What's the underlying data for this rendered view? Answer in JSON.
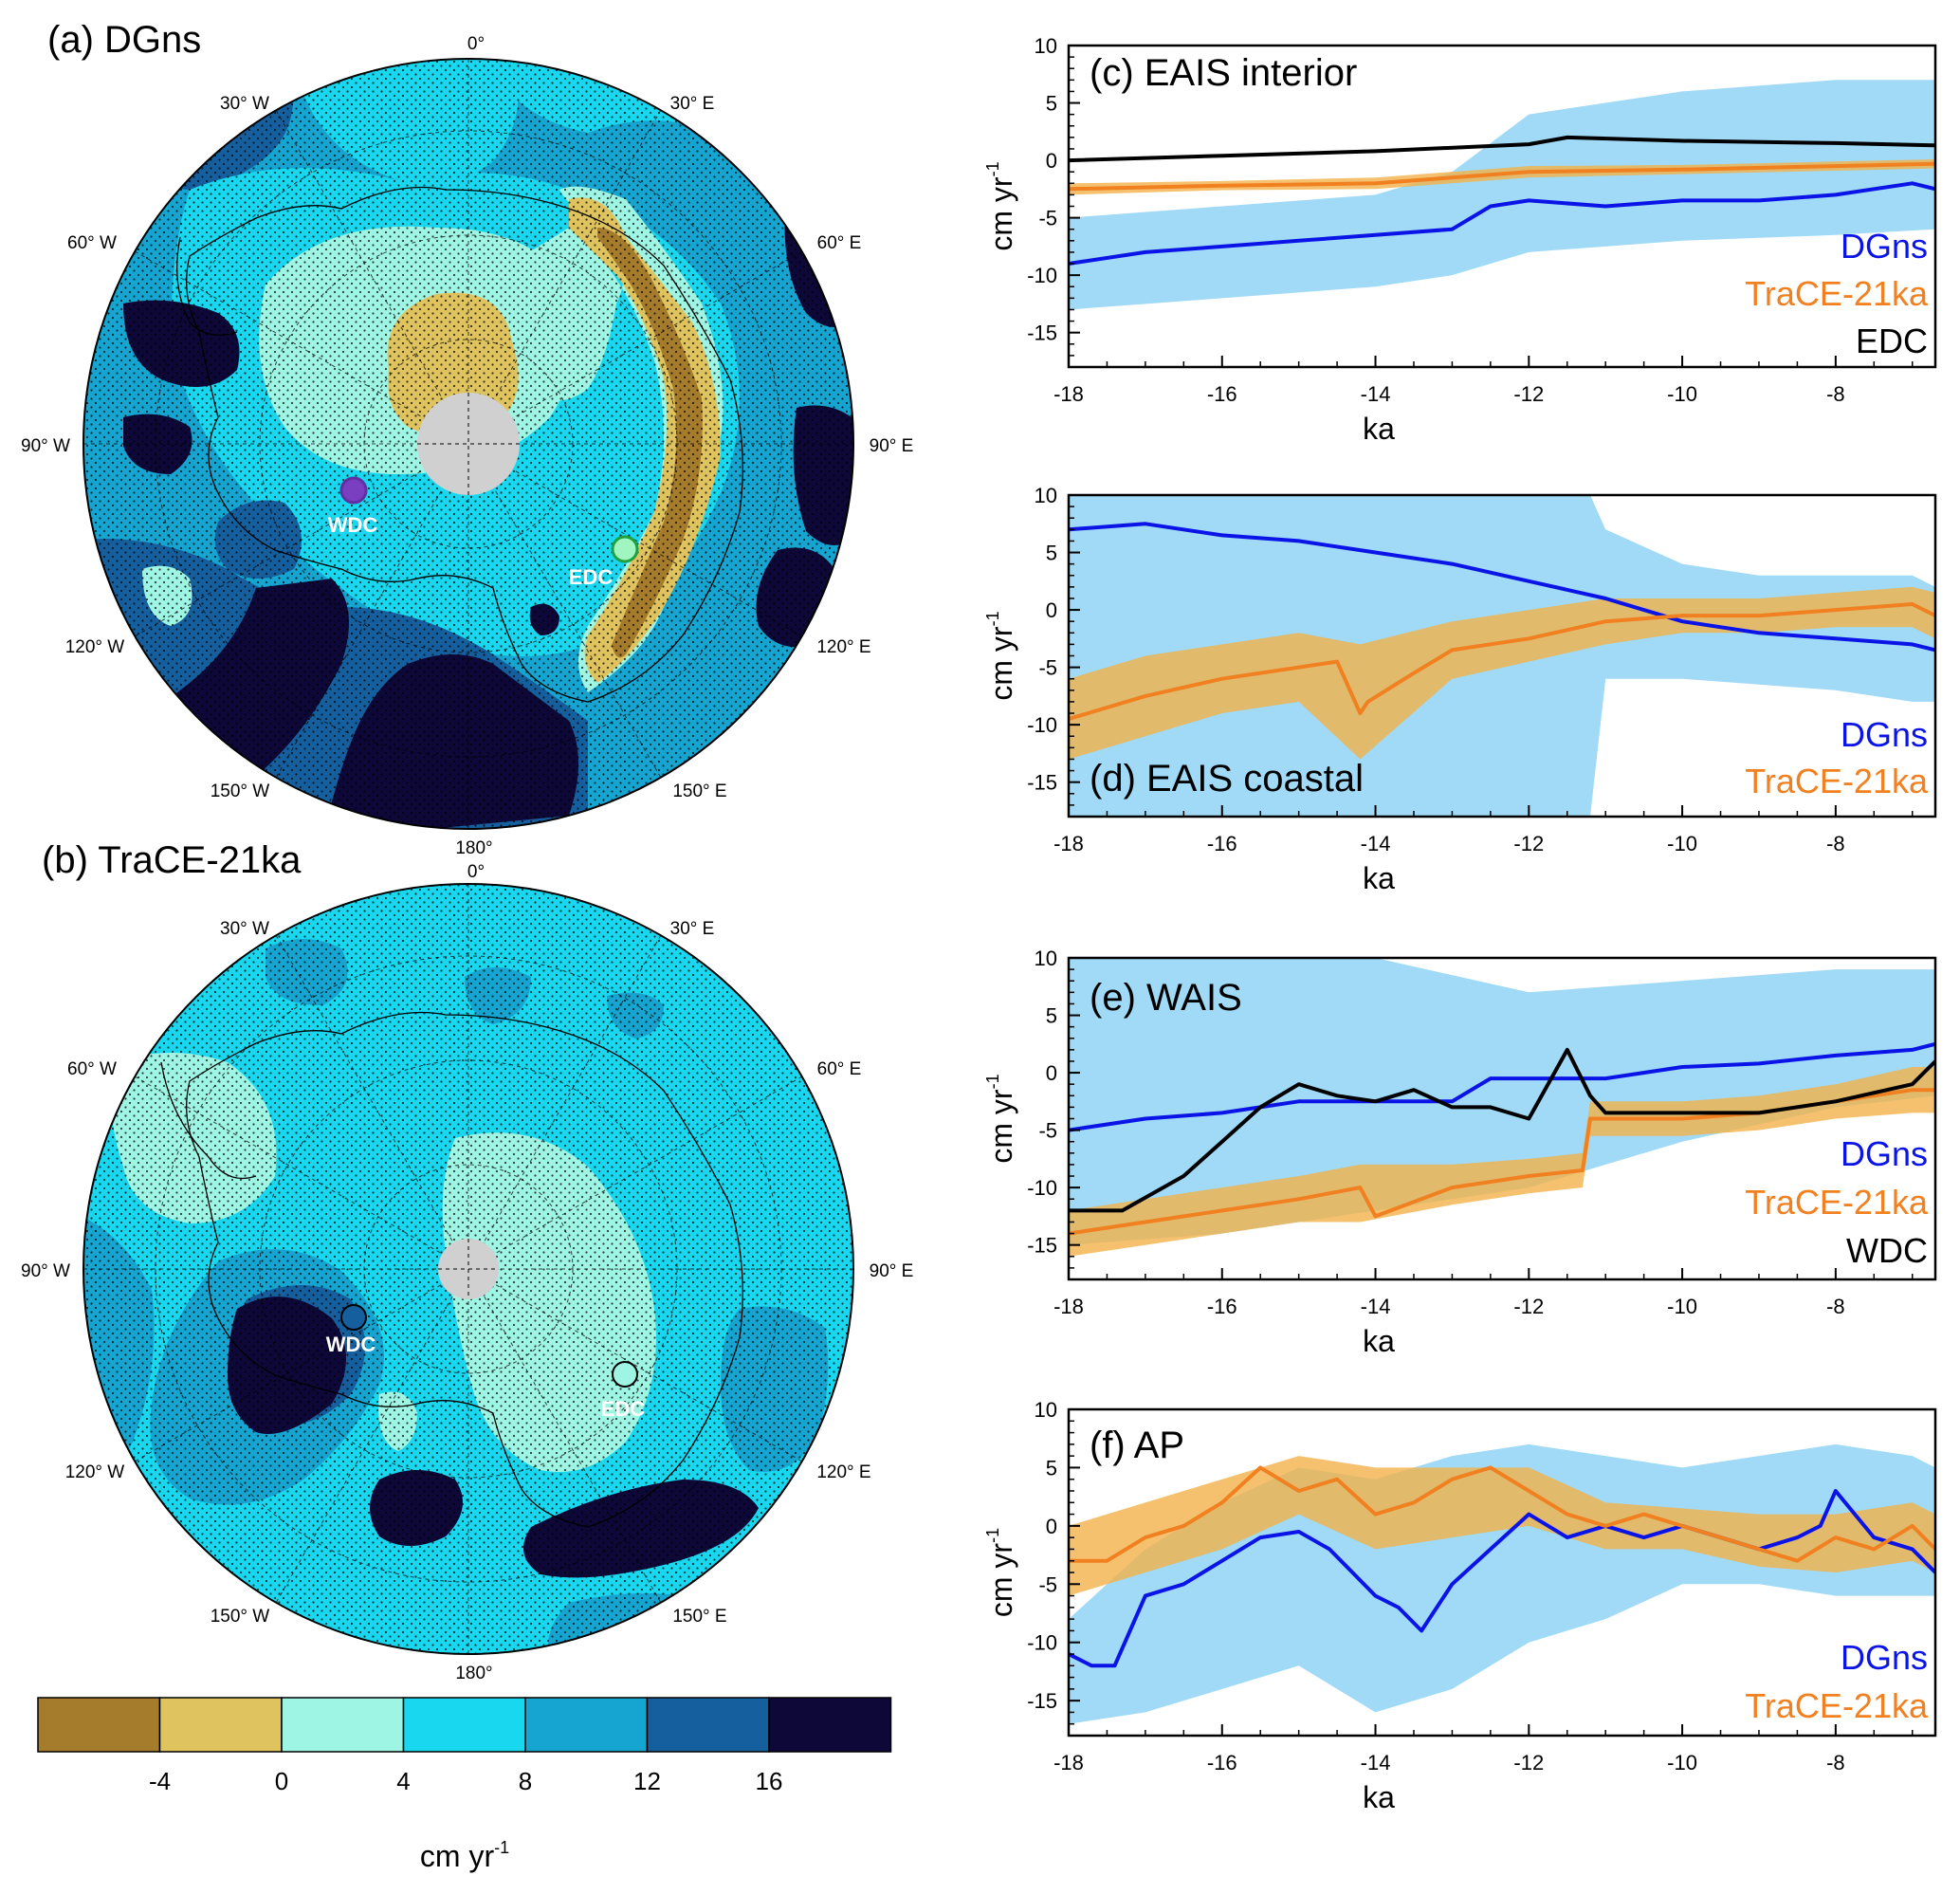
{
  "colors": {
    "dgns": "#0a14e6",
    "trace": "#f08020",
    "obs": "#000000",
    "dgns_band": "#8fd3f4",
    "trace_band": "#f2b24a",
    "grey": "#d0d0d0"
  },
  "maps": [
    {
      "title": "(a) DGns",
      "lon_labels": [
        "0°",
        "30° E",
        "60° E",
        "90° E",
        "120° E",
        "150° E",
        "180°",
        "150° W",
        "120° W",
        "90° W",
        "60° W",
        "30° W"
      ],
      "sites": [
        "WDC",
        "EDC"
      ]
    },
    {
      "title": "(b) TraCE-21ka",
      "lon_labels": [
        "0°",
        "30° E",
        "60° E",
        "90° E",
        "120° E",
        "150° E",
        "180°",
        "150° W",
        "120° W",
        "90° W",
        "60° W",
        "30° W"
      ],
      "sites": [
        "WDC",
        "EDC"
      ]
    }
  ],
  "colorbar": {
    "levels": [
      -4,
      0,
      4,
      8,
      12,
      16
    ],
    "colors": [
      "#a57b2c",
      "#dfc35f",
      "#9ff5e3",
      "#19d7ef",
      "#16a4d0",
      "#155f9e",
      "#0d0838"
    ],
    "label": "cm yr",
    "label_sup": "-1"
  },
  "chart_data": [
    {
      "type": "line",
      "title": "(c) EAIS interior",
      "xlabel": "ka",
      "ylabel": "cm yr",
      "ylabel_sup": "-1",
      "xlim": [
        -18,
        -6.7
      ],
      "ylim": [
        -18,
        10
      ],
      "xticks": [
        -18,
        -16,
        -14,
        -12,
        -10,
        -8
      ],
      "yticks": [
        -15,
        -10,
        -5,
        0,
        5,
        10
      ],
      "series": [
        {
          "name": "DGns",
          "x": [
            -18,
            -17,
            -16,
            -15,
            -14,
            -13,
            -12.5,
            -12,
            -11,
            -10,
            -9,
            -8,
            -7,
            -6.7
          ],
          "values": [
            -9,
            -8,
            -7.5,
            -7,
            -6.5,
            -6,
            -4,
            -3.5,
            -4,
            -3.5,
            -3.5,
            -3,
            -2,
            -2.5
          ]
        },
        {
          "name": "TraCE-21ka",
          "x": [
            -18,
            -16,
            -14,
            -12,
            -10,
            -8,
            -6.7
          ],
          "values": [
            -2.5,
            -2.2,
            -2,
            -1,
            -0.8,
            -0.5,
            -0.3
          ]
        },
        {
          "name": "EDC",
          "x": [
            -18,
            -16,
            -14,
            -12,
            -11.5,
            -10,
            -8,
            -6.7
          ],
          "values": [
            0,
            0.4,
            0.8,
            1.4,
            2,
            1.7,
            1.5,
            1.3
          ]
        }
      ],
      "bands": [
        {
          "name": "DGns",
          "x": [
            -18,
            -16,
            -14,
            -13,
            -12,
            -10,
            -8,
            -6.7
          ],
          "lower": [
            -13,
            -12,
            -11,
            -10,
            -8,
            -7,
            -6.5,
            -6
          ],
          "upper": [
            -5,
            -4,
            -3,
            -1,
            4,
            6,
            7,
            7
          ]
        },
        {
          "name": "TraCE-21ka",
          "x": [
            -18,
            -16,
            -14,
            -12,
            -10,
            -8,
            -6.7
          ],
          "lower": [
            -3,
            -2.6,
            -2.5,
            -1.5,
            -1.2,
            -0.9,
            -0.7
          ],
          "upper": [
            -2,
            -1.8,
            -1.5,
            -0.5,
            -0.4,
            -0.1,
            0.1
          ]
        }
      ],
      "legend": [
        "DGns",
        "TraCE-21ka",
        "EDC"
      ]
    },
    {
      "type": "line",
      "title": "(d) EAIS coastal",
      "xlabel": "ka",
      "ylabel": "cm yr",
      "ylabel_sup": "-1",
      "xlim": [
        -18,
        -6.7
      ],
      "ylim": [
        -18,
        10
      ],
      "xticks": [
        -18,
        -16,
        -14,
        -12,
        -10,
        -8
      ],
      "yticks": [
        -15,
        -10,
        -5,
        0,
        5,
        10
      ],
      "series": [
        {
          "name": "DGns",
          "x": [
            -18,
            -17,
            -16,
            -15,
            -14,
            -13,
            -12,
            -11,
            -10,
            -9,
            -8,
            -7,
            -6.7
          ],
          "values": [
            7,
            7.5,
            6.5,
            6,
            5,
            4,
            2.5,
            1,
            -1,
            -2,
            -2.5,
            -3,
            -3.5
          ]
        },
        {
          "name": "TraCE-21ka",
          "x": [
            -18,
            -17,
            -16,
            -15,
            -14.5,
            -14.2,
            -14.1,
            -13.5,
            -13,
            -12,
            -11,
            -10,
            -9,
            -8,
            -7,
            -6.7
          ],
          "values": [
            -9.5,
            -7.5,
            -6,
            -5,
            -4.5,
            -9,
            -8,
            -5.5,
            -3.5,
            -2.5,
            -1,
            -0.5,
            -0.5,
            0,
            0.5,
            -0.5
          ]
        }
      ],
      "bands": [
        {
          "name": "DGns",
          "x": [
            -18,
            -16,
            -14,
            -12,
            -11.2,
            -11,
            -10,
            -9,
            -8,
            -7,
            -6.7
          ],
          "lower": [
            -18,
            -18,
            -18,
            -18,
            -18,
            -6,
            -6,
            -6.5,
            -7,
            -8,
            -8
          ],
          "upper": [
            10,
            10,
            10,
            10,
            10,
            7,
            4,
            3,
            3,
            3,
            2
          ]
        },
        {
          "name": "TraCE-21ka",
          "x": [
            -18,
            -17,
            -16,
            -15,
            -14.2,
            -13,
            -12,
            -11,
            -10,
            -9,
            -8,
            -7,
            -6.7
          ],
          "lower": [
            -13,
            -11,
            -9,
            -8,
            -13,
            -6,
            -4.5,
            -3,
            -2,
            -2,
            -1.5,
            -1.5,
            -2.5
          ],
          "upper": [
            -6,
            -4,
            -3,
            -2,
            -3,
            -1,
            0,
            1,
            1,
            1,
            1.5,
            2,
            1.5
          ]
        }
      ],
      "legend": [
        "DGns",
        "TraCE-21ka"
      ]
    },
    {
      "type": "line",
      "title": "(e) WAIS",
      "xlabel": "ka",
      "ylabel": "cm yr",
      "ylabel_sup": "-1",
      "xlim": [
        -18,
        -6.7
      ],
      "ylim": [
        -18,
        10
      ],
      "xticks": [
        -18,
        -16,
        -14,
        -12,
        -10,
        -8
      ],
      "yticks": [
        -15,
        -10,
        -5,
        0,
        5,
        10
      ],
      "series": [
        {
          "name": "DGns",
          "x": [
            -18,
            -17,
            -16,
            -15,
            -14,
            -13,
            -12.5,
            -12,
            -11,
            -10,
            -9,
            -8,
            -7,
            -6.7
          ],
          "values": [
            -5,
            -4,
            -3.5,
            -2.5,
            -2.5,
            -2.5,
            -0.5,
            -0.5,
            -0.5,
            0.5,
            0.8,
            1.5,
            2,
            2.5
          ]
        },
        {
          "name": "TraCE-21ka",
          "x": [
            -18,
            -17,
            -16,
            -15,
            -14.2,
            -14,
            -13,
            -12,
            -11.3,
            -11.2,
            -10,
            -9,
            -8,
            -7,
            -6.7
          ],
          "values": [
            -14,
            -13,
            -12,
            -11,
            -10,
            -12.5,
            -10,
            -9,
            -8.5,
            -4,
            -4,
            -3.5,
            -2.5,
            -1.5,
            -1.5
          ]
        },
        {
          "name": "WDC",
          "x": [
            -18,
            -17.3,
            -16.5,
            -16,
            -15.5,
            -15,
            -14.5,
            -14,
            -13.5,
            -13,
            -12.5,
            -12,
            -11.5,
            -11.2,
            -11,
            -10,
            -9,
            -8,
            -7,
            -6.7
          ],
          "values": [
            -12,
            -12,
            -9,
            -6,
            -3,
            -1,
            -2,
            -2.5,
            -1.5,
            -3,
            -3,
            -4,
            2,
            -2,
            -3.5,
            -3.5,
            -3.5,
            -2.5,
            -1,
            1
          ]
        }
      ],
      "bands": [
        {
          "name": "DGns",
          "x": [
            -18,
            -16,
            -14,
            -12,
            -10,
            -8,
            -6.7
          ],
          "lower": [
            -15,
            -14,
            -12,
            -10,
            -6,
            -3,
            -2
          ],
          "upper": [
            10,
            10,
            10,
            7,
            8,
            9,
            9
          ]
        },
        {
          "name": "TraCE-21ka",
          "x": [
            -18,
            -17,
            -16,
            -15,
            -14.2,
            -13,
            -12,
            -11.3,
            -11.2,
            -10,
            -9,
            -8,
            -7,
            -6.7
          ],
          "lower": [
            -16,
            -15,
            -14,
            -13,
            -13,
            -11.5,
            -10.5,
            -10,
            -5.5,
            -5.5,
            -5,
            -4,
            -3.5,
            -3.5
          ],
          "upper": [
            -12,
            -11,
            -10,
            -9,
            -8,
            -8,
            -7.5,
            -7,
            -2.5,
            -2.5,
            -2,
            -1,
            0.5,
            0.5
          ]
        }
      ],
      "legend": [
        "DGns",
        "TraCE-21ka",
        "WDC"
      ]
    },
    {
      "type": "line",
      "title": "(f) AP",
      "xlabel": "ka",
      "ylabel": "cm yr",
      "ylabel_sup": "-1",
      "xlim": [
        -18,
        -6.7
      ],
      "ylim": [
        -18,
        10
      ],
      "xticks": [
        -18,
        -16,
        -14,
        -12,
        -10,
        -8
      ],
      "yticks": [
        -15,
        -10,
        -5,
        0,
        5,
        10
      ],
      "series": [
        {
          "name": "DGns",
          "x": [
            -18,
            -17.7,
            -17.4,
            -17,
            -16.5,
            -16,
            -15.5,
            -15,
            -14.6,
            -14.3,
            -14,
            -13.7,
            -13.4,
            -13,
            -12.5,
            -12,
            -11.5,
            -11,
            -10.5,
            -10,
            -9.5,
            -9,
            -8.5,
            -8.2,
            -8,
            -7.5,
            -7,
            -6.7
          ],
          "values": [
            -11,
            -12,
            -12,
            -6,
            -5,
            -3,
            -1,
            -0.5,
            -2,
            -4,
            -6,
            -7,
            -9,
            -5,
            -2,
            1,
            -1,
            0,
            -1,
            0,
            -1,
            -2,
            -1,
            0,
            3,
            -1,
            -2,
            -4
          ]
        },
        {
          "name": "TraCE-21ka",
          "x": [
            -18,
            -17.5,
            -17,
            -16.5,
            -16,
            -15.5,
            -15,
            -14.5,
            -14,
            -13.5,
            -13,
            -12.5,
            -12,
            -11.5,
            -11,
            -10.5,
            -10,
            -9.5,
            -9,
            -8.5,
            -8,
            -7.5,
            -7,
            -6.7
          ],
          "values": [
            -3,
            -3,
            -1,
            0,
            2,
            5,
            3,
            4,
            1,
            2,
            4,
            5,
            3,
            1,
            0,
            1,
            0,
            -1,
            -2,
            -3,
            -1,
            -2,
            0,
            -2
          ]
        }
      ],
      "bands": [
        {
          "name": "DGns",
          "x": [
            -18,
            -17,
            -16,
            -15,
            -14,
            -13,
            -12,
            -11,
            -10,
            -9,
            -8,
            -7,
            -6.7
          ],
          "lower": [
            -17,
            -16,
            -14,
            -12,
            -16,
            -14,
            -10,
            -8,
            -5,
            -5,
            -6,
            -6,
            -6
          ],
          "upper": [
            -8,
            -2,
            2,
            5,
            4,
            6,
            7,
            6,
            5,
            6,
            7,
            6,
            5
          ]
        },
        {
          "name": "TraCE-21ka",
          "x": [
            -18,
            -17,
            -16,
            -15,
            -14,
            -13,
            -12,
            -11,
            -10,
            -9,
            -8,
            -7,
            -6.7
          ],
          "lower": [
            -6,
            -4,
            -2,
            1,
            -2,
            -1,
            0,
            -2,
            -2,
            -3.5,
            -4,
            -3,
            -4
          ],
          "upper": [
            0,
            2,
            4,
            6,
            5,
            5,
            5,
            2,
            1.5,
            1,
            1,
            2,
            1
          ]
        }
      ],
      "legend": [
        "DGns",
        "TraCE-21ka"
      ]
    }
  ]
}
